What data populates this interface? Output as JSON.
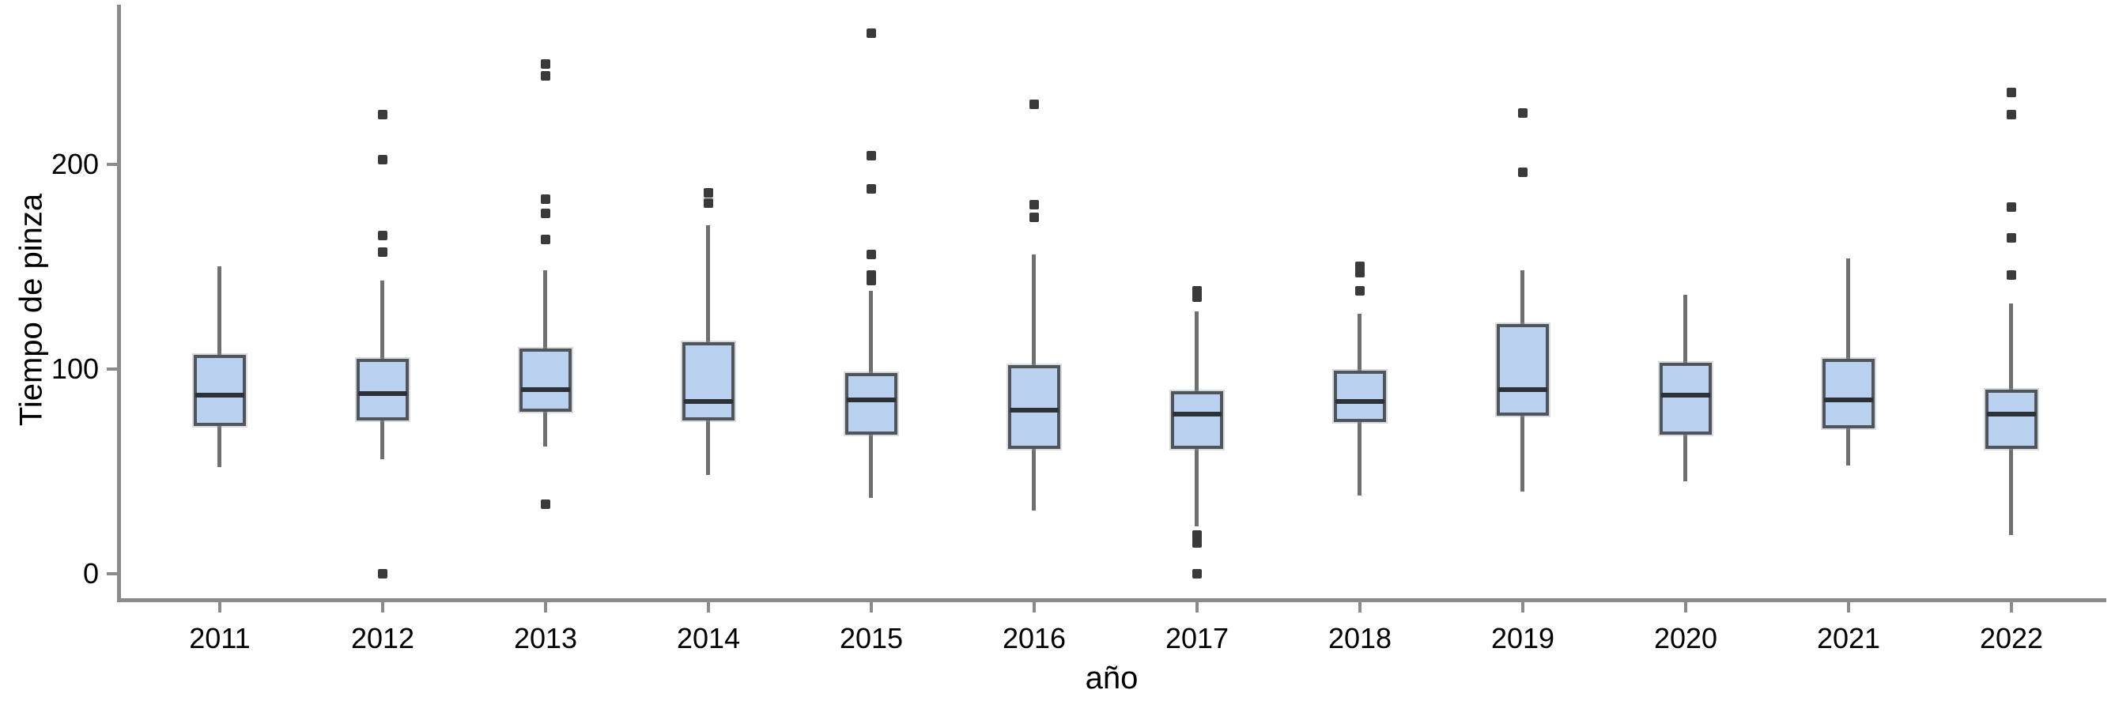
{
  "chart_data": {
    "type": "boxplot",
    "title": "",
    "xlabel": "año",
    "ylabel": "Tiempo de pinza",
    "categories": [
      "2011",
      "2012",
      "2013",
      "2014",
      "2015",
      "2016",
      "2017",
      "2018",
      "2019",
      "2020",
      "2021",
      "2022"
    ],
    "y_ticks": [
      0,
      100,
      200
    ],
    "ylim": [
      -12,
      277
    ],
    "grid": false,
    "legend": "none",
    "series": [
      {
        "category": "2011",
        "whisker_low": 52,
        "q1": 72,
        "median": 87,
        "q3": 107,
        "whisker_high": 150,
        "outliers": []
      },
      {
        "category": "2012",
        "whisker_low": 56,
        "q1": 75,
        "median": 88,
        "q3": 105,
        "whisker_high": 143,
        "outliers": [
          224,
          202,
          165,
          157,
          0
        ]
      },
      {
        "category": "2013",
        "whisker_low": 62,
        "q1": 79,
        "median": 90,
        "q3": 110,
        "whisker_high": 148,
        "outliers": [
          249,
          243,
          183,
          176,
          163,
          34
        ]
      },
      {
        "category": "2014",
        "whisker_low": 48,
        "q1": 75,
        "median": 84,
        "q3": 113,
        "whisker_high": 170,
        "outliers": [
          186,
          181
        ]
      },
      {
        "category": "2015",
        "whisker_low": 37,
        "q1": 68,
        "median": 85,
        "q3": 98,
        "whisker_high": 138,
        "outliers": [
          264,
          204,
          188,
          156,
          146,
          143
        ]
      },
      {
        "category": "2016",
        "whisker_low": 31,
        "q1": 61,
        "median": 80,
        "q3": 102,
        "whisker_high": 156,
        "outliers": [
          229,
          180,
          174
        ]
      },
      {
        "category": "2017",
        "whisker_low": 23,
        "q1": 61,
        "median": 78,
        "q3": 89,
        "whisker_high": 128,
        "outliers": [
          138,
          135,
          19,
          15,
          0
        ]
      },
      {
        "category": "2018",
        "whisker_low": 38,
        "q1": 74,
        "median": 84,
        "q3": 99,
        "whisker_high": 127,
        "outliers": [
          150,
          147,
          138
        ]
      },
      {
        "category": "2019",
        "whisker_low": 40,
        "q1": 77,
        "median": 90,
        "q3": 122,
        "whisker_high": 148,
        "outliers": [
          225,
          196
        ]
      },
      {
        "category": "2020",
        "whisker_low": 45,
        "q1": 68,
        "median": 87,
        "q3": 103,
        "whisker_high": 136,
        "outliers": []
      },
      {
        "category": "2021",
        "whisker_low": 53,
        "q1": 71,
        "median": 85,
        "q3": 105,
        "whisker_high": 154,
        "outliers": []
      },
      {
        "category": "2022",
        "whisker_low": 19,
        "q1": 61,
        "median": 78,
        "q3": 90,
        "whisker_high": 132,
        "outliers": [
          235,
          224,
          179,
          164,
          146
        ]
      }
    ],
    "colors": {
      "box_fill": "#b9d0ee",
      "box_border": "#50555b",
      "median": "#2c3137",
      "whisker": "#6f6f6f",
      "outlier": "#3a3a3a",
      "axis": "#8b8b8b",
      "text": "#000000",
      "background": "#ffffff"
    }
  }
}
